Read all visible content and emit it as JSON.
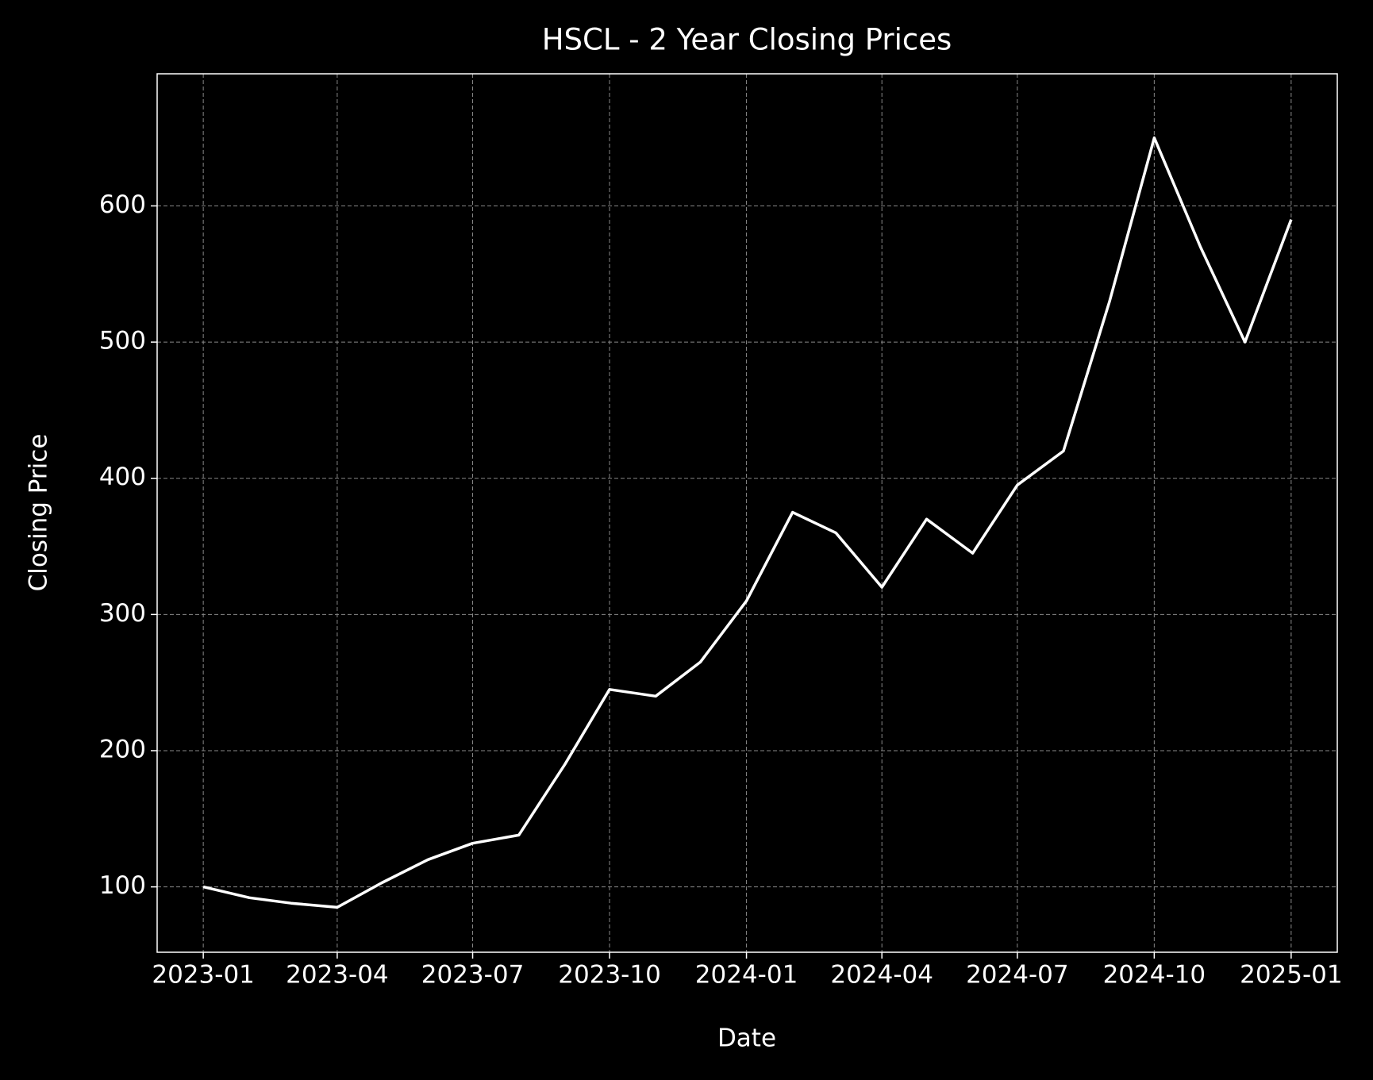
{
  "chart_data": {
    "type": "line",
    "title": "HSCL - 2 Year Closing Prices",
    "x_label": "Date",
    "y_label": "Closing Price",
    "x": [
      "2023-01",
      "2023-02",
      "2023-03",
      "2023-04",
      "2023-05",
      "2023-06",
      "2023-07",
      "2023-08",
      "2023-09",
      "2023-10",
      "2023-11",
      "2023-12",
      "2024-01",
      "2024-02",
      "2024-03",
      "2024-04",
      "2024-05",
      "2024-06",
      "2024-07",
      "2024-08",
      "2024-09",
      "2024-10",
      "2024-11",
      "2024-12",
      "2025-01"
    ],
    "values": [
      100,
      92,
      88,
      85,
      103,
      120,
      132,
      138,
      190,
      245,
      240,
      265,
      310,
      375,
      360,
      320,
      370,
      345,
      395,
      420,
      530,
      650,
      570,
      500,
      590
    ],
    "color": "#ffffff",
    "xlim": [
      "2022-12",
      "2025-02"
    ],
    "xticks": [
      "2023-01",
      "2023-04",
      "2023-07",
      "2023-10",
      "2024-01",
      "2024-04",
      "2024-07",
      "2024-10",
      "2025-01"
    ],
    "ylim": [
      52,
      697
    ],
    "yticks": [
      100,
      200,
      300,
      400,
      500,
      600
    ],
    "grid": true
  }
}
